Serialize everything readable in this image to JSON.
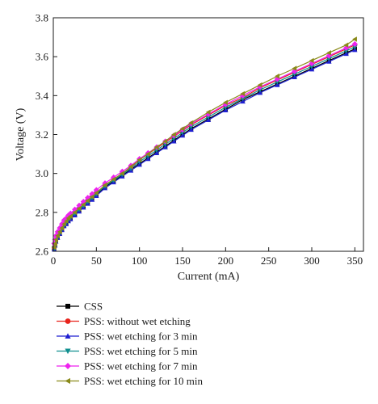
{
  "chart_data": {
    "type": "line",
    "xlabel": "Current (mA)",
    "ylabel": "Voltage (V)",
    "xlim": [
      0,
      360
    ],
    "ylim": [
      2.6,
      3.8
    ],
    "xticks": [
      0,
      50,
      100,
      150,
      200,
      250,
      300,
      350
    ],
    "yticks": [
      2.6,
      2.8,
      3.0,
      3.2,
      3.4,
      3.6,
      3.8
    ],
    "ytick_labels": [
      "2.6",
      "2.8",
      "3.0",
      "3.2",
      "3.4",
      "3.6",
      "3.8"
    ],
    "grid": false,
    "legend_position": "below",
    "x": [
      1,
      2,
      3,
      5,
      7.5,
      10,
      12.5,
      15,
      17.5,
      20,
      25,
      30,
      35,
      40,
      45,
      50,
      60,
      70,
      80,
      90,
      100,
      110,
      120,
      130,
      140,
      150,
      160,
      180,
      200,
      220,
      240,
      260,
      280,
      300,
      320,
      340,
      350
    ],
    "series": [
      {
        "name": "CSS",
        "color": "#000000",
        "marker": "square",
        "values": [
          2.61,
          2.63,
          2.65,
          2.67,
          2.69,
          2.71,
          2.73,
          2.745,
          2.76,
          2.77,
          2.79,
          2.81,
          2.83,
          2.85,
          2.87,
          2.89,
          2.93,
          2.96,
          2.99,
          3.02,
          3.05,
          3.08,
          3.11,
          3.14,
          3.17,
          3.2,
          3.23,
          3.28,
          3.33,
          3.38,
          3.42,
          3.46,
          3.5,
          3.54,
          3.58,
          3.62,
          3.64
        ]
      },
      {
        "name": "PSS: without wet etching",
        "color": "#e8231c",
        "marker": "circle",
        "values": [
          2.62,
          2.64,
          2.66,
          2.68,
          2.7,
          2.72,
          2.74,
          2.76,
          2.77,
          2.78,
          2.8,
          2.82,
          2.84,
          2.86,
          2.88,
          2.9,
          2.94,
          2.97,
          3.0,
          3.03,
          3.07,
          3.1,
          3.13,
          3.16,
          3.19,
          3.22,
          3.25,
          3.3,
          3.35,
          3.39,
          3.44,
          3.48,
          3.52,
          3.56,
          3.6,
          3.64,
          3.66
        ]
      },
      {
        "name": "PSS: wet etching for 3 min",
        "color": "#1f1fd1",
        "marker": "triangle-up",
        "values": [
          2.61,
          2.63,
          2.65,
          2.67,
          2.69,
          2.71,
          2.73,
          2.74,
          2.755,
          2.765,
          2.785,
          2.805,
          2.825,
          2.845,
          2.865,
          2.885,
          2.925,
          2.955,
          2.985,
          3.015,
          3.045,
          3.075,
          3.105,
          3.135,
          3.165,
          3.195,
          3.225,
          3.275,
          3.325,
          3.37,
          3.415,
          3.455,
          3.495,
          3.535,
          3.575,
          3.615,
          3.635
        ]
      },
      {
        "name": "PSS: wet etching for 5 min",
        "color": "#0f8f8f",
        "marker": "triangle-down",
        "values": [
          2.615,
          2.635,
          2.655,
          2.675,
          2.695,
          2.715,
          2.735,
          2.75,
          2.765,
          2.775,
          2.795,
          2.815,
          2.835,
          2.855,
          2.875,
          2.895,
          2.935,
          2.965,
          2.995,
          3.025,
          3.06,
          3.09,
          3.12,
          3.15,
          3.18,
          3.21,
          3.24,
          3.29,
          3.34,
          3.385,
          3.43,
          3.47,
          3.51,
          3.55,
          3.59,
          3.63,
          3.65
        ]
      },
      {
        "name": "PSS: wet etching for 7 min",
        "color": "#ee22ee",
        "marker": "diamond",
        "values": [
          2.64,
          2.66,
          2.68,
          2.7,
          2.72,
          2.74,
          2.76,
          2.77,
          2.785,
          2.795,
          2.815,
          2.835,
          2.855,
          2.875,
          2.895,
          2.915,
          2.95,
          2.98,
          3.01,
          3.04,
          3.075,
          3.105,
          3.135,
          3.165,
          3.195,
          3.225,
          3.255,
          3.305,
          3.355,
          3.4,
          3.445,
          3.485,
          3.525,
          3.565,
          3.605,
          3.645,
          3.665
        ]
      },
      {
        "name": "PSS: wet etching for 10 min",
        "color": "#8a8a1a",
        "marker": "triangle-left",
        "values": [
          2.62,
          2.64,
          2.66,
          2.68,
          2.7,
          2.72,
          2.74,
          2.755,
          2.77,
          2.78,
          2.8,
          2.82,
          2.84,
          2.86,
          2.88,
          2.9,
          2.94,
          2.97,
          3.0,
          3.035,
          3.07,
          3.1,
          3.135,
          3.165,
          3.2,
          3.23,
          3.26,
          3.315,
          3.365,
          3.41,
          3.455,
          3.5,
          3.54,
          3.58,
          3.62,
          3.66,
          3.69
        ]
      }
    ]
  }
}
